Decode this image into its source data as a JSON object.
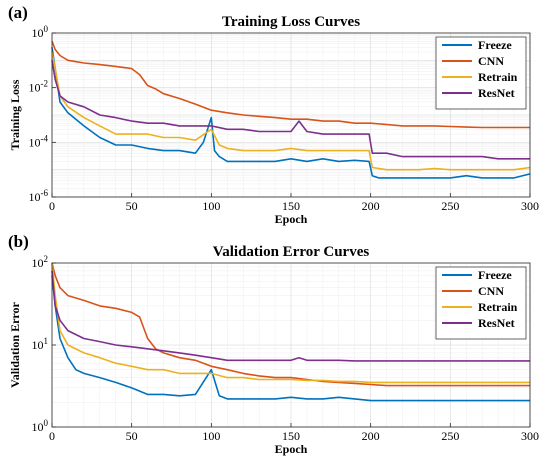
{
  "chart_data": [
    {
      "panel": "(a)",
      "type": "line",
      "title": "Training Loss Curves",
      "xlabel": "Epoch",
      "ylabel": "Training Loss",
      "xlim": [
        0,
        300
      ],
      "ylim": [
        1e-06,
        1
      ],
      "yscale": "log",
      "grid": true,
      "legend_position": "top-right",
      "x_ticks": [
        "0",
        "50",
        "100",
        "150",
        "200",
        "250",
        "300"
      ],
      "y_ticks": [
        "10-6",
        "10-4",
        "10-2",
        "100"
      ],
      "series": [
        {
          "name": "Freeze",
          "color": "#0072BD",
          "x": [
            0,
            2,
            5,
            10,
            20,
            30,
            40,
            50,
            60,
            70,
            80,
            90,
            95,
            100,
            102,
            105,
            110,
            120,
            130,
            140,
            150,
            160,
            170,
            180,
            190,
            199,
            201,
            205,
            210,
            220,
            230,
            240,
            250,
            260,
            270,
            280,
            290,
            300
          ],
          "y": [
            0.3,
            0.05,
            0.003,
            0.0012,
            0.0004,
            0.00015,
            8e-05,
            8e-05,
            6e-05,
            5e-05,
            5e-05,
            4e-05,
            0.0001,
            0.0008,
            5e-05,
            3e-05,
            2e-05,
            2e-05,
            2e-05,
            2e-05,
            2.5e-05,
            2e-05,
            2.5e-05,
            2e-05,
            2.2e-05,
            2e-05,
            6e-06,
            5e-06,
            5e-06,
            5e-06,
            5e-06,
            5e-06,
            5e-06,
            6e-06,
            5e-06,
            5e-06,
            5e-06,
            7e-06
          ]
        },
        {
          "name": "CNN",
          "color": "#D95319",
          "x": [
            0,
            2,
            5,
            10,
            20,
            30,
            40,
            50,
            55,
            60,
            65,
            70,
            80,
            90,
            100,
            110,
            120,
            130,
            140,
            150,
            160,
            170,
            180,
            190,
            200,
            210,
            220,
            230,
            240,
            250,
            260,
            270,
            280,
            290,
            300
          ],
          "y": [
            0.5,
            0.25,
            0.15,
            0.1,
            0.08,
            0.07,
            0.06,
            0.05,
            0.03,
            0.012,
            0.009,
            0.006,
            0.004,
            0.0025,
            0.0015,
            0.0012,
            0.001,
            0.0009,
            0.0008,
            0.0007,
            0.0007,
            0.0006,
            0.0006,
            0.0005,
            0.0005,
            0.00045,
            0.0004,
            0.0004,
            0.0004,
            0.00038,
            0.00036,
            0.00035,
            0.00035,
            0.00035,
            0.00035
          ]
        },
        {
          "name": "Retrain",
          "color": "#EDB120",
          "x": [
            0,
            2,
            5,
            10,
            20,
            30,
            40,
            50,
            60,
            70,
            80,
            90,
            100,
            105,
            110,
            120,
            130,
            140,
            150,
            160,
            170,
            180,
            190,
            199,
            201,
            210,
            220,
            230,
            240,
            250,
            260,
            270,
            280,
            290,
            300
          ],
          "y": [
            0.2,
            0.05,
            0.005,
            0.002,
            0.0008,
            0.0004,
            0.0002,
            0.0002,
            0.0002,
            0.00015,
            0.00015,
            0.00012,
            0.0003,
            8e-05,
            6e-05,
            5e-05,
            5e-05,
            5e-05,
            6e-05,
            5e-05,
            5e-05,
            5e-05,
            5e-05,
            5e-05,
            1.2e-05,
            1e-05,
            1e-05,
            1e-05,
            1.1e-05,
            1e-05,
            1e-05,
            1e-05,
            1e-05,
            1e-05,
            1.2e-05
          ]
        },
        {
          "name": "ResNet",
          "color": "#7E2F8E",
          "x": [
            0,
            2,
            5,
            10,
            20,
            30,
            40,
            50,
            60,
            70,
            80,
            90,
            100,
            110,
            120,
            130,
            140,
            150,
            155,
            160,
            170,
            180,
            190,
            199,
            201,
            210,
            220,
            230,
            240,
            250,
            260,
            270,
            280,
            290,
            300
          ],
          "y": [
            0.1,
            0.02,
            0.005,
            0.003,
            0.002,
            0.001,
            0.0008,
            0.0006,
            0.0005,
            0.0005,
            0.0004,
            0.0004,
            0.0004,
            0.0003,
            0.0003,
            0.00025,
            0.00025,
            0.00025,
            0.0006,
            0.00025,
            0.0002,
            0.0002,
            0.0002,
            0.0002,
            4e-05,
            4e-05,
            3e-05,
            3e-05,
            3e-05,
            3e-05,
            3e-05,
            3e-05,
            2.5e-05,
            2.5e-05,
            2.5e-05
          ]
        }
      ]
    },
    {
      "panel": "(b)",
      "type": "line",
      "title": "Validation Error Curves",
      "xlabel": "Epoch",
      "ylabel": "Validation Error",
      "xlim": [
        0,
        300
      ],
      "ylim": [
        1,
        100
      ],
      "yscale": "log",
      "grid": true,
      "legend_position": "top-right",
      "x_ticks": [
        "0",
        "50",
        "100",
        "150",
        "200",
        "250",
        "300"
      ],
      "y_ticks": [
        "100",
        "101",
        "102"
      ],
      "series": [
        {
          "name": "Freeze",
          "color": "#0072BD",
          "x": [
            0,
            2,
            5,
            10,
            15,
            20,
            30,
            40,
            50,
            60,
            70,
            80,
            90,
            100,
            105,
            110,
            120,
            130,
            140,
            150,
            160,
            170,
            180,
            190,
            200,
            210,
            220,
            230,
            240,
            250,
            260,
            270,
            280,
            290,
            300
          ],
          "y": [
            70,
            30,
            12,
            7,
            5,
            4.5,
            4,
            3.5,
            3,
            2.5,
            2.5,
            2.4,
            2.5,
            5,
            2.4,
            2.2,
            2.2,
            2.2,
            2.2,
            2.3,
            2.2,
            2.2,
            2.3,
            2.2,
            2.1,
            2.1,
            2.1,
            2.1,
            2.1,
            2.1,
            2.1,
            2.1,
            2.1,
            2.1,
            2.1
          ]
        },
        {
          "name": "CNN",
          "color": "#D95319",
          "x": [
            0,
            2,
            5,
            10,
            20,
            30,
            40,
            50,
            55,
            60,
            65,
            70,
            80,
            90,
            100,
            110,
            120,
            130,
            140,
            150,
            160,
            170,
            180,
            190,
            200,
            210,
            220,
            230,
            240,
            250,
            260,
            270,
            280,
            290,
            300
          ],
          "y": [
            100,
            70,
            50,
            40,
            35,
            30,
            28,
            25,
            22,
            12,
            9,
            8,
            7,
            6.5,
            5.5,
            5,
            4.5,
            4.2,
            4,
            4,
            3.8,
            3.6,
            3.5,
            3.4,
            3.3,
            3.2,
            3.2,
            3.2,
            3.2,
            3.2,
            3.2,
            3.2,
            3.2,
            3.2,
            3.2
          ]
        },
        {
          "name": "Retrain",
          "color": "#EDB120",
          "x": [
            0,
            2,
            5,
            10,
            20,
            30,
            40,
            50,
            60,
            70,
            80,
            90,
            100,
            110,
            120,
            130,
            140,
            150,
            160,
            170,
            180,
            190,
            200,
            210,
            220,
            230,
            240,
            250,
            260,
            270,
            280,
            290,
            300
          ],
          "y": [
            100,
            40,
            15,
            10,
            8,
            7,
            6,
            5.5,
            5,
            5,
            4.5,
            4.5,
            4.5,
            4,
            4,
            3.8,
            3.8,
            3.8,
            3.7,
            3.7,
            3.6,
            3.6,
            3.5,
            3.5,
            3.5,
            3.5,
            3.5,
            3.5,
            3.5,
            3.5,
            3.5,
            3.5,
            3.5
          ]
        },
        {
          "name": "ResNet",
          "color": "#7E2F8E",
          "x": [
            0,
            2,
            5,
            10,
            20,
            30,
            40,
            50,
            60,
            70,
            80,
            90,
            100,
            110,
            120,
            130,
            140,
            150,
            155,
            160,
            170,
            180,
            190,
            200,
            210,
            220,
            230,
            240,
            250,
            260,
            270,
            280,
            290,
            300
          ],
          "y": [
            80,
            30,
            20,
            15,
            12,
            11,
            10,
            9.5,
            9,
            8.5,
            8,
            7.5,
            7,
            6.5,
            6.5,
            6.5,
            6.5,
            6.5,
            7,
            6.5,
            6.5,
            6.5,
            6.4,
            6.4,
            6.4,
            6.4,
            6.4,
            6.4,
            6.4,
            6.4,
            6.4,
            6.4,
            6.4,
            6.4
          ]
        }
      ]
    }
  ]
}
